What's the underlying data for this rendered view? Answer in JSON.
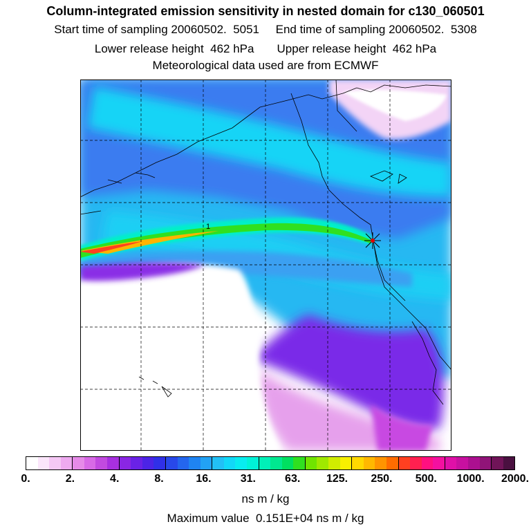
{
  "title": "Column-integrated emission sensitivity in nested domain for c130_060501",
  "sampling_line": "Start time of sampling 20060502.  5051     End time of sampling 20060502.  5308",
  "release_line": "Lower release height  462 hPa       Upper release height  462 hPa",
  "met_line": "Meteorological data used are from ECMWF",
  "contour_label": "1",
  "colorbar": {
    "labels": [
      "0.",
      "2.",
      "4.",
      "8.",
      "16.",
      "31.",
      "63.",
      "125.",
      "250.",
      "500.",
      "1000.",
      "2000."
    ],
    "colors": [
      "#ffffff",
      "#fbe6fb",
      "#f5c8f5",
      "#eeaaf0",
      "#e68be8",
      "#d86ae6",
      "#c24ae0",
      "#a830e0",
      "#8a26e4",
      "#6a22e6",
      "#4c24e6",
      "#3030e8",
      "#2848ea",
      "#2466ee",
      "#1f84f2",
      "#22a2f4",
      "#22c0f6",
      "#12d8f8",
      "#08ecf0",
      "#00f2d8",
      "#00f0b8",
      "#00e890",
      "#00e060",
      "#30e020",
      "#70e400",
      "#a0e800",
      "#d0ec00",
      "#f8f000",
      "#ffd800",
      "#ffb800",
      "#ff9400",
      "#ff6c00",
      "#ff4020",
      "#ff2050",
      "#ff1080",
      "#f410a0",
      "#e010a8",
      "#c810a0",
      "#ac1090",
      "#901478",
      "#701458",
      "#4a1040"
    ],
    "units": "ns m / kg"
  },
  "max_value_line": "Maximum value  0.151E+04 ns m / kg"
}
